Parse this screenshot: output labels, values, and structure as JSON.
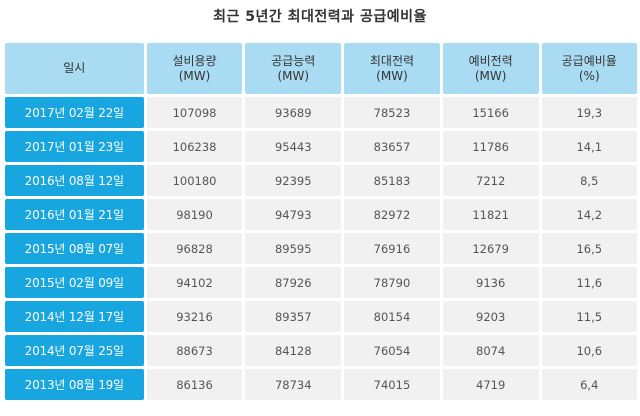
{
  "title": "최근 5년간 최대전력과 공급예비율",
  "headers": [
    {
      "line1": "일시",
      "line2": ""
    },
    {
      "line1": "설비용량",
      "line2": "(MW)"
    },
    {
      "line1": "공급능력",
      "line2": "(MW)"
    },
    {
      "line1": "최대전력",
      "line2": "(MW)"
    },
    {
      "line1": "예비전력",
      "line2": "(MW)"
    },
    {
      "line1": "공급예비율",
      "line2": "(%)"
    }
  ],
  "rows": [
    {
      "date": "2017년 02월 22일",
      "capacity": "107098",
      "supply": "93689",
      "peak": "78523",
      "reserve": "15166",
      "ratio": "19,3"
    },
    {
      "date": "2017년 01월 23일",
      "capacity": "106238",
      "supply": "95443",
      "peak": "83657",
      "reserve": "11786",
      "ratio": "14,1"
    },
    {
      "date": "2016년 08월 12일",
      "capacity": "100180",
      "supply": "92395",
      "peak": "85183",
      "reserve": "7212",
      "ratio": "8,5"
    },
    {
      "date": "2016년 01월 21일",
      "capacity": "98190",
      "supply": "94793",
      "peak": "82972",
      "reserve": "11821",
      "ratio": "14,2"
    },
    {
      "date": "2015년 08월 07일",
      "capacity": "96828",
      "supply": "89595",
      "peak": "76916",
      "reserve": "12679",
      "ratio": "16,5"
    },
    {
      "date": "2015년 02월 09일",
      "capacity": "94102",
      "supply": "87926",
      "peak": "78790",
      "reserve": "9136",
      "ratio": "11,6"
    },
    {
      "date": "2014년 12월 17일",
      "capacity": "93216",
      "supply": "89357",
      "peak": "80154",
      "reserve": "9203",
      "ratio": "11,5"
    },
    {
      "date": "2014년 07월 25일",
      "capacity": "88673",
      "supply": "84128",
      "peak": "76054",
      "reserve": "8074",
      "ratio": "10,6"
    },
    {
      "date": "2013년 08월 19일",
      "capacity": "86136",
      "supply": "78734",
      "peak": "74015",
      "reserve": "4719",
      "ratio": "6,4"
    }
  ]
}
